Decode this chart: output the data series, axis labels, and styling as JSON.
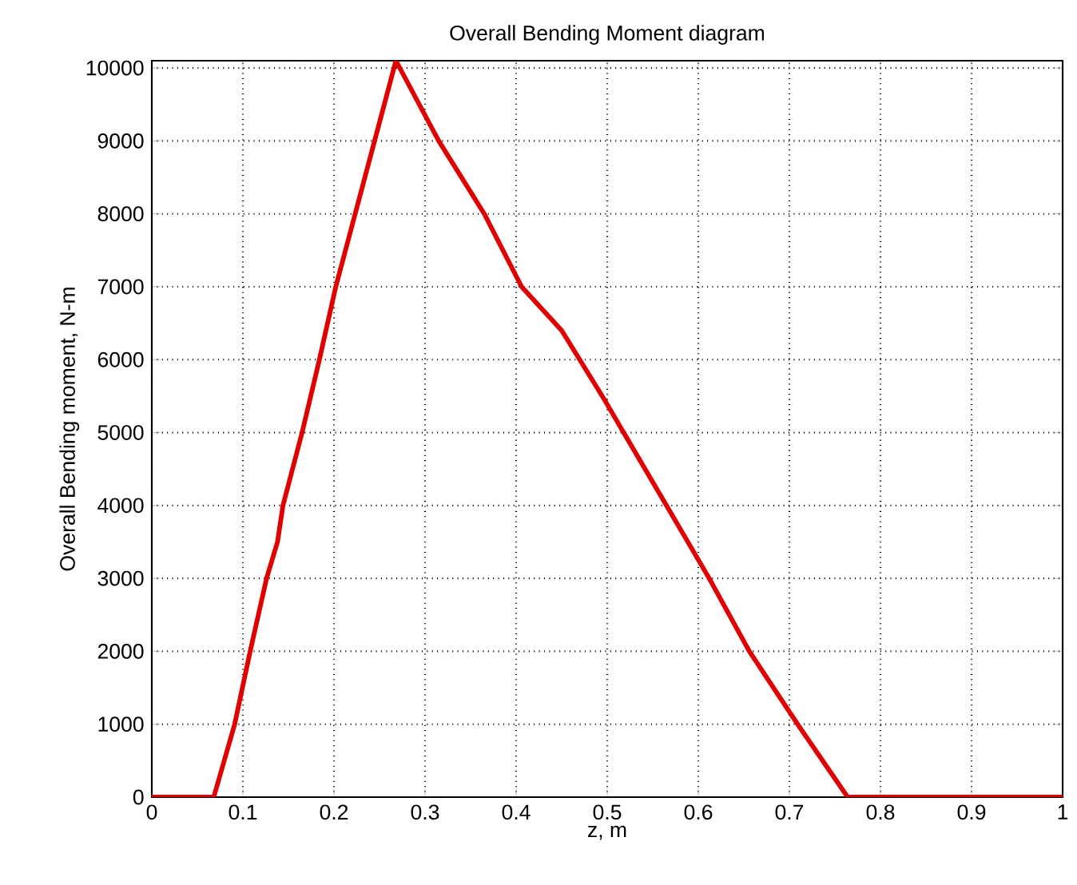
{
  "chart_data": {
    "type": "line",
    "title": "Overall Bending Moment diagram",
    "xlabel": "z, m",
    "ylabel": "Overall Bending moment, N-m",
    "x": [
      0,
      0.068,
      0.091,
      0.108,
      0.126,
      0.138,
      0.144,
      0.165,
      0.184,
      0.202,
      0.268,
      0.315,
      0.365,
      0.406,
      0.45,
      0.497,
      0.518,
      0.565,
      0.612,
      0.656,
      0.709,
      0.764,
      1
    ],
    "series": [
      {
        "color": "#e00000",
        "values": [
          0,
          0,
          1000,
          2000,
          3000,
          3500,
          4000,
          5000,
          6000,
          7000,
          10100,
          9000,
          8000,
          7000,
          6400,
          5450,
          5000,
          4000,
          3000,
          2000,
          1000,
          0,
          0
        ]
      }
    ],
    "xlim": [
      0,
      1
    ],
    "ylim": [
      0,
      10100
    ],
    "xticks": [
      0,
      0.1,
      0.2,
      0.3,
      0.4,
      0.5,
      0.6,
      0.7,
      0.8,
      0.9,
      1
    ],
    "yticks": [
      0,
      1000,
      2000,
      3000,
      4000,
      5000,
      6000,
      7000,
      8000,
      9000,
      10000
    ],
    "grid": true,
    "line_style": "solid",
    "marker": "none"
  }
}
